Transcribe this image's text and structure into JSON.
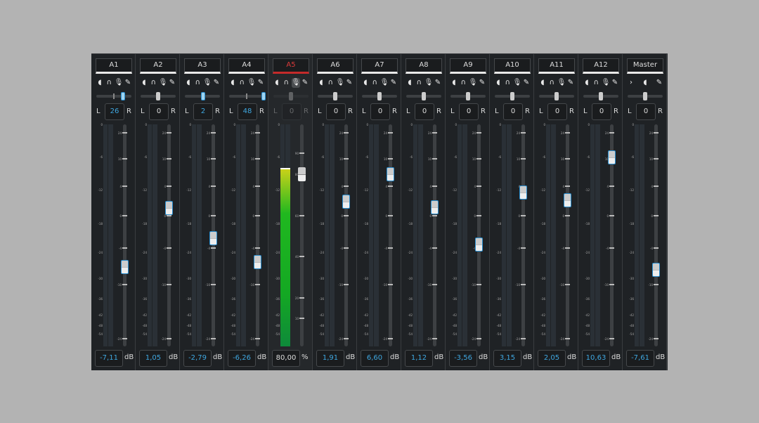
{
  "meter_scale": [
    "0",
    "-6",
    "-12",
    "-18",
    "-24",
    "-30",
    "-36",
    "-42",
    "-48",
    "-54"
  ],
  "fader_scale_db": [
    "24",
    "10",
    "4",
    "0",
    "-4",
    "-10",
    "-24"
  ],
  "fader_scale_pct": [
    "90",
    "80",
    "60",
    "40",
    "20",
    "10"
  ],
  "pan_labels": {
    "left": "L",
    "right": "R"
  },
  "colors": {
    "accent": "#3fa7e0",
    "selected": "#c42a2a",
    "meter": "#14a823"
  },
  "channels": [
    {
      "name": "A1",
      "pan": "26",
      "value": "-7,11",
      "unit": "dB",
      "icons": [
        "speaker-icon",
        "headphones-icon",
        "mic-icon",
        "edit-icon"
      ]
    },
    {
      "name": "A2",
      "pan": "0",
      "value": "1,05",
      "unit": "dB",
      "icons": [
        "speaker-icon",
        "headphones-icon",
        "mic-icon",
        "edit-icon"
      ]
    },
    {
      "name": "A3",
      "pan": "2",
      "value": "-2,79",
      "unit": "dB",
      "icons": [
        "speaker-icon",
        "headphones-icon",
        "mic-icon",
        "edit-icon"
      ]
    },
    {
      "name": "A4",
      "pan": "48",
      "value": "-6,26",
      "unit": "dB",
      "icons": [
        "speaker-icon",
        "headphones-icon",
        "mic-icon",
        "edit-icon"
      ]
    },
    {
      "name": "A5",
      "pan": "0",
      "value": "80,00",
      "unit": "%",
      "selected": true,
      "mic_active": true,
      "pan_disabled": true,
      "meter_level_db": -8,
      "icons": [
        "speaker-icon",
        "headphones-icon",
        "mic-icon",
        "edit-icon"
      ]
    },
    {
      "name": "A6",
      "pan": "0",
      "value": "1,91",
      "unit": "dB",
      "icons": [
        "speaker-icon",
        "headphones-icon",
        "mic-icon",
        "edit-icon"
      ]
    },
    {
      "name": "A7",
      "pan": "0",
      "value": "6,60",
      "unit": "dB",
      "icons": [
        "speaker-icon",
        "headphones-icon",
        "mic-icon",
        "edit-icon"
      ]
    },
    {
      "name": "A8",
      "pan": "0",
      "value": "1,12",
      "unit": "dB",
      "icons": [
        "speaker-icon",
        "headphones-icon",
        "mic-icon",
        "edit-icon"
      ]
    },
    {
      "name": "A9",
      "pan": "0",
      "value": "-3,56",
      "unit": "dB",
      "icons": [
        "speaker-icon",
        "headphones-icon",
        "mic-icon",
        "edit-icon"
      ]
    },
    {
      "name": "A10",
      "pan": "0",
      "value": "3,15",
      "unit": "dB",
      "icons": [
        "speaker-icon",
        "headphones-icon",
        "mic-icon",
        "edit-icon"
      ]
    },
    {
      "name": "A11",
      "pan": "0",
      "value": "2,05",
      "unit": "dB",
      "icons": [
        "speaker-icon",
        "headphones-icon",
        "mic-icon",
        "edit-icon"
      ]
    },
    {
      "name": "A12",
      "pan": "0",
      "value": "10,63",
      "unit": "dB",
      "icons": [
        "speaker-icon",
        "headphones-icon",
        "mic-icon",
        "edit-icon"
      ]
    },
    {
      "name": "Master",
      "pan": "0",
      "value": "-7,61",
      "unit": "dB",
      "icons": [
        "chevron-right-icon",
        "speaker-icon",
        "edit-icon"
      ]
    }
  ]
}
